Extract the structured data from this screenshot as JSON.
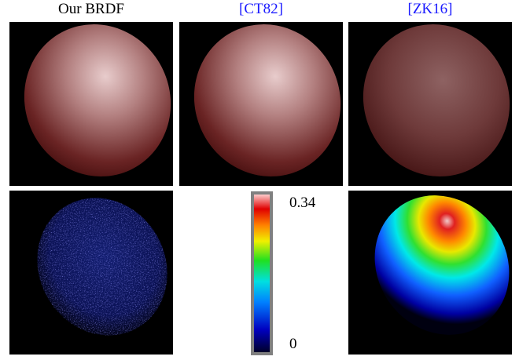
{
  "headers": [
    "Our BRDF",
    "[CT82]",
    "[ZK16]"
  ],
  "colorbar": {
    "max": 0.34,
    "min": 0
  }
}
